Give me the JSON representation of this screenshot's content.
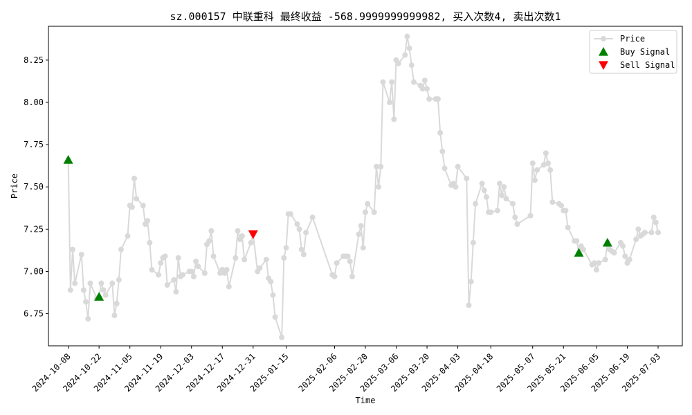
{
  "chart_data": {
    "type": "line",
    "title": "sz.000157 中联重科 最终收益 -568.9999999999982, 买入次数4, 卖出次数1",
    "xlabel": "Time",
    "ylabel": "Price",
    "xlim": [
      "2024-09-29",
      "2025-07-14"
    ],
    "ylim": [
      6.56,
      8.45
    ],
    "grid": false,
    "legend_position": "upper right",
    "x_ticks": [
      "2024-10-08",
      "2024-10-22",
      "2024-11-05",
      "2024-11-19",
      "2024-12-03",
      "2024-12-17",
      "2024-12-31",
      "2025-01-15",
      "2025-02-06",
      "2025-02-20",
      "2025-03-06",
      "2025-03-20",
      "2025-04-03",
      "2025-04-18",
      "2025-05-07",
      "2025-05-21",
      "2025-06-05",
      "2025-06-19",
      "2025-07-03"
    ],
    "y_ticks": [
      6.75,
      7.0,
      7.25,
      7.5,
      7.75,
      8.0,
      8.25
    ],
    "series": [
      {
        "name": "Price",
        "color": "#d9d9d9",
        "marker": "circle",
        "points": [
          [
            "2024-10-08",
            7.66
          ],
          [
            "2024-10-09",
            6.89
          ],
          [
            "2024-10-10",
            7.13
          ],
          [
            "2024-10-11",
            6.93
          ],
          [
            "2024-10-14",
            7.1
          ],
          [
            "2024-10-15",
            6.89
          ],
          [
            "2024-10-16",
            6.82
          ],
          [
            "2024-10-17",
            6.72
          ],
          [
            "2024-10-18",
            6.93
          ],
          [
            "2024-10-21",
            6.84
          ],
          [
            "2024-10-22",
            6.85
          ],
          [
            "2024-10-23",
            6.93
          ],
          [
            "2024-10-24",
            6.89
          ],
          [
            "2024-10-25",
            6.86
          ],
          [
            "2024-10-28",
            6.93
          ],
          [
            "2024-10-29",
            6.74
          ],
          [
            "2024-10-30",
            6.81
          ],
          [
            "2024-10-31",
            6.95
          ],
          [
            "2024-11-01",
            7.13
          ],
          [
            "2024-11-04",
            7.21
          ],
          [
            "2024-11-05",
            7.39
          ],
          [
            "2024-11-06",
            7.38
          ],
          [
            "2024-11-07",
            7.55
          ],
          [
            "2024-11-08",
            7.43
          ],
          [
            "2024-11-11",
            7.39
          ],
          [
            "2024-11-12",
            7.28
          ],
          [
            "2024-11-13",
            7.3
          ],
          [
            "2024-11-14",
            7.17
          ],
          [
            "2024-11-15",
            7.01
          ],
          [
            "2024-11-18",
            6.98
          ],
          [
            "2024-11-19",
            7.05
          ],
          [
            "2024-11-20",
            7.08
          ],
          [
            "2024-11-21",
            7.09
          ],
          [
            "2024-11-22",
            6.92
          ],
          [
            "2024-11-25",
            6.95
          ],
          [
            "2024-11-26",
            6.88
          ],
          [
            "2024-11-27",
            7.08
          ],
          [
            "2024-11-28",
            6.97
          ],
          [
            "2024-11-29",
            6.98
          ],
          [
            "2024-12-02",
            7.0
          ],
          [
            "2024-12-03",
            7.0
          ],
          [
            "2024-12-04",
            6.97
          ],
          [
            "2024-12-05",
            7.06
          ],
          [
            "2024-12-06",
            7.03
          ],
          [
            "2024-12-09",
            6.99
          ],
          [
            "2024-12-10",
            7.16
          ],
          [
            "2024-12-11",
            7.18
          ],
          [
            "2024-12-12",
            7.24
          ],
          [
            "2024-12-13",
            7.09
          ],
          [
            "2024-12-16",
            6.99
          ],
          [
            "2024-12-17",
            7.01
          ],
          [
            "2024-12-18",
            6.99
          ],
          [
            "2024-12-19",
            7.01
          ],
          [
            "2024-12-20",
            6.91
          ],
          [
            "2024-12-23",
            7.08
          ],
          [
            "2024-12-24",
            7.24
          ],
          [
            "2024-12-25",
            7.19
          ],
          [
            "2024-12-26",
            7.21
          ],
          [
            "2024-12-27",
            7.07
          ],
          [
            "2024-12-30",
            7.17
          ],
          [
            "2024-12-31",
            7.22
          ],
          [
            "2025-01-02",
            7.0
          ],
          [
            "2025-01-03",
            7.02
          ],
          [
            "2025-01-06",
            7.07
          ],
          [
            "2025-01-07",
            6.96
          ],
          [
            "2025-01-08",
            6.94
          ],
          [
            "2025-01-09",
            6.86
          ],
          [
            "2025-01-10",
            6.73
          ],
          [
            "2025-01-13",
            6.61
          ],
          [
            "2025-01-14",
            7.08
          ],
          [
            "2025-01-15",
            7.14
          ],
          [
            "2025-01-16",
            7.34
          ],
          [
            "2025-01-17",
            7.34
          ],
          [
            "2025-01-20",
            7.28
          ],
          [
            "2025-01-21",
            7.25
          ],
          [
            "2025-01-22",
            7.13
          ],
          [
            "2025-01-23",
            7.1
          ],
          [
            "2025-01-24",
            7.23
          ],
          [
            "2025-01-27",
            7.32
          ],
          [
            "2025-02-05",
            6.98
          ],
          [
            "2025-02-06",
            6.97
          ],
          [
            "2025-02-07",
            7.05
          ],
          [
            "2025-02-10",
            7.09
          ],
          [
            "2025-02-11",
            7.09
          ],
          [
            "2025-02-12",
            7.09
          ],
          [
            "2025-02-13",
            7.06
          ],
          [
            "2025-02-14",
            6.97
          ],
          [
            "2025-02-17",
            7.22
          ],
          [
            "2025-02-18",
            7.27
          ],
          [
            "2025-02-19",
            7.14
          ],
          [
            "2025-02-20",
            7.35
          ],
          [
            "2025-02-21",
            7.4
          ],
          [
            "2025-02-24",
            7.35
          ],
          [
            "2025-02-25",
            7.62
          ],
          [
            "2025-02-26",
            7.5
          ],
          [
            "2025-02-27",
            7.62
          ],
          [
            "2025-02-28",
            8.12
          ],
          [
            "2025-03-03",
            8.0
          ],
          [
            "2025-03-04",
            8.12
          ],
          [
            "2025-03-05",
            7.9
          ],
          [
            "2025-03-06",
            8.25
          ],
          [
            "2025-03-07",
            8.23
          ],
          [
            "2025-03-10",
            8.28
          ],
          [
            "2025-03-11",
            8.39
          ],
          [
            "2025-03-12",
            8.32
          ],
          [
            "2025-03-13",
            8.22
          ],
          [
            "2025-03-14",
            8.12
          ],
          [
            "2025-03-17",
            8.1
          ],
          [
            "2025-03-18",
            8.08
          ],
          [
            "2025-03-19",
            8.13
          ],
          [
            "2025-03-20",
            8.08
          ],
          [
            "2025-03-21",
            8.02
          ],
          [
            "2025-03-24",
            8.02
          ],
          [
            "2025-03-25",
            8.02
          ],
          [
            "2025-03-26",
            7.82
          ],
          [
            "2025-03-27",
            7.71
          ],
          [
            "2025-03-28",
            7.61
          ],
          [
            "2025-03-31",
            7.51
          ],
          [
            "2025-04-01",
            7.52
          ],
          [
            "2025-04-02",
            7.5
          ],
          [
            "2025-04-03",
            7.62
          ],
          [
            "2025-04-07",
            7.55
          ],
          [
            "2025-04-08",
            6.8
          ],
          [
            "2025-04-09",
            6.94
          ],
          [
            "2025-04-10",
            7.17
          ],
          [
            "2025-04-11",
            7.4
          ],
          [
            "2025-04-14",
            7.52
          ],
          [
            "2025-04-15",
            7.48
          ],
          [
            "2025-04-16",
            7.44
          ],
          [
            "2025-04-17",
            7.35
          ],
          [
            "2025-04-18",
            7.35
          ],
          [
            "2025-04-21",
            7.36
          ],
          [
            "2025-04-22",
            7.52
          ],
          [
            "2025-04-23",
            7.45
          ],
          [
            "2025-04-24",
            7.5
          ],
          [
            "2025-04-25",
            7.43
          ],
          [
            "2025-04-28",
            7.4
          ],
          [
            "2025-04-29",
            7.32
          ],
          [
            "2025-04-30",
            7.28
          ],
          [
            "2025-05-06",
            7.33
          ],
          [
            "2025-05-07",
            7.64
          ],
          [
            "2025-05-08",
            7.54
          ],
          [
            "2025-05-09",
            7.6
          ],
          [
            "2025-05-12",
            7.63
          ],
          [
            "2025-05-13",
            7.7
          ],
          [
            "2025-05-14",
            7.64
          ],
          [
            "2025-05-15",
            7.6
          ],
          [
            "2025-05-16",
            7.41
          ],
          [
            "2025-05-19",
            7.4
          ],
          [
            "2025-05-20",
            7.39
          ],
          [
            "2025-05-21",
            7.36
          ],
          [
            "2025-05-22",
            7.36
          ],
          [
            "2025-05-23",
            7.26
          ],
          [
            "2025-05-26",
            7.18
          ],
          [
            "2025-05-27",
            7.18
          ],
          [
            "2025-05-28",
            7.11
          ],
          [
            "2025-05-29",
            7.15
          ],
          [
            "2025-05-30",
            7.13
          ],
          [
            "2025-06-03",
            7.04
          ],
          [
            "2025-06-04",
            7.05
          ],
          [
            "2025-06-05",
            7.01
          ],
          [
            "2025-06-06",
            7.05
          ],
          [
            "2025-06-09",
            7.07
          ],
          [
            "2025-06-10",
            7.17
          ],
          [
            "2025-06-11",
            7.13
          ],
          [
            "2025-06-12",
            7.12
          ],
          [
            "2025-06-13",
            7.11
          ],
          [
            "2025-06-16",
            7.17
          ],
          [
            "2025-06-17",
            7.15
          ],
          [
            "2025-06-18",
            7.09
          ],
          [
            "2025-06-19",
            7.05
          ],
          [
            "2025-06-20",
            7.07
          ],
          [
            "2025-06-23",
            7.19
          ],
          [
            "2025-06-24",
            7.25
          ],
          [
            "2025-06-25",
            7.21
          ],
          [
            "2025-06-26",
            7.22
          ],
          [
            "2025-06-27",
            7.23
          ],
          [
            "2025-06-30",
            7.23
          ],
          [
            "2025-07-01",
            7.32
          ],
          [
            "2025-07-02",
            7.29
          ],
          [
            "2025-07-03",
            7.23
          ]
        ]
      },
      {
        "name": "Buy Signal",
        "color": "#008000",
        "marker": "triangle-up",
        "points": [
          [
            "2024-10-08",
            7.66
          ],
          [
            "2024-10-22",
            6.85
          ],
          [
            "2025-05-28",
            7.11
          ],
          [
            "2025-06-10",
            7.17
          ]
        ]
      },
      {
        "name": "Sell Signal",
        "color": "#ff0000",
        "marker": "triangle-down",
        "points": [
          [
            "2024-12-31",
            7.22
          ]
        ]
      }
    ]
  }
}
